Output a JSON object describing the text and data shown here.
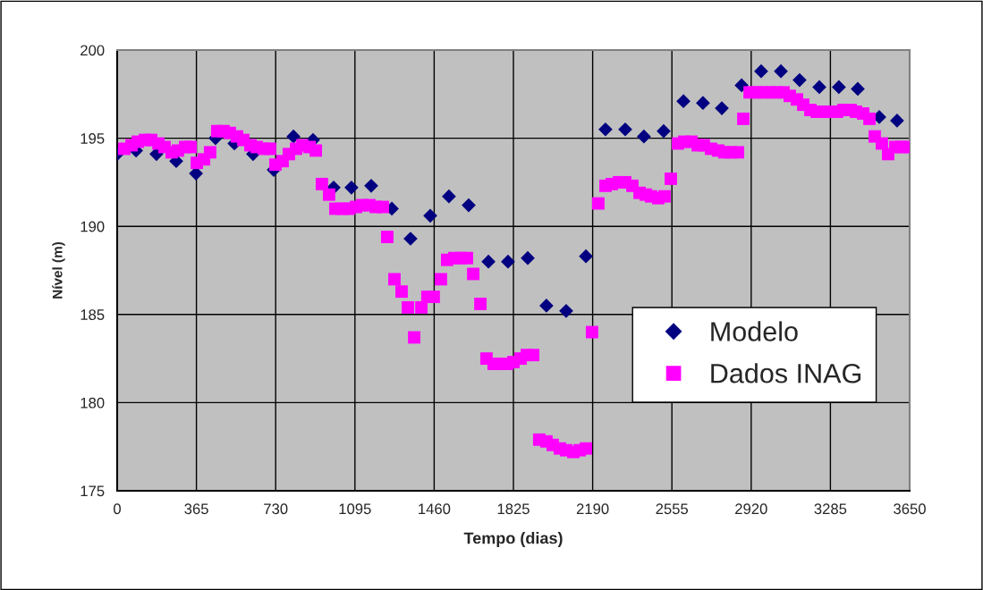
{
  "chart_data": {
    "type": "scatter",
    "xlabel": "Tempo (dias)",
    "ylabel": "Nível (m)",
    "xlim": [
      0,
      3650
    ],
    "xticks": [
      0,
      365,
      730,
      1095,
      1460,
      1825,
      2190,
      2555,
      2920,
      3285,
      3650
    ],
    "ylim": [
      175,
      200
    ],
    "yticks": [
      175,
      180,
      185,
      190,
      195,
      200
    ],
    "grid": true,
    "legend": "lower right",
    "series": [
      {
        "name": "Modelo",
        "color": "#000080",
        "marker": "diamond",
        "x": [
          0,
          87,
          181,
          272,
          363,
          453,
          540,
          626,
          721,
          812,
          902,
          997,
          1079,
          1170,
          1265,
          1351,
          1442,
          1528,
          1619,
          1710,
          1800,
          1891,
          1977,
          2068,
          2159,
          2249,
          2340,
          2426,
          2517,
          2608,
          2698,
          2785,
          2876,
          2966,
          3057,
          3143,
          3234,
          3324,
          3411,
          3510,
          3592
        ],
        "values": [
          194.1,
          194.3,
          194.1,
          193.7,
          193.0,
          195.0,
          194.7,
          194.1,
          193.2,
          195.1,
          194.9,
          192.2,
          192.2,
          192.3,
          191.0,
          189.3,
          190.6,
          191.7,
          191.2,
          188.0,
          188.0,
          188.2,
          185.5,
          185.2,
          188.3,
          195.5,
          195.5,
          195.1,
          195.4,
          197.1,
          197.0,
          196.7,
          198.0,
          198.8,
          198.8,
          198.3,
          197.9,
          197.9,
          197.8,
          196.2,
          196.0
        ]
      },
      {
        "name": "Dados INAG",
        "color": "#ff00ff",
        "marker": "square",
        "x": [
          33,
          66,
          95,
          128,
          157,
          190,
          218,
          251,
          280,
          313,
          338,
          367,
          400,
          428,
          461,
          490,
          519,
          552,
          581,
          614,
          643,
          676,
          704,
          729,
          762,
          791,
          824,
          853,
          886,
          915,
          943,
          976,
          1005,
          1038,
          1067,
          1100,
          1129,
          1162,
          1191,
          1224,
          1244,
          1277,
          1310,
          1339,
          1368,
          1401,
          1429,
          1458,
          1491,
          1520,
          1553,
          1582,
          1611,
          1640,
          1673,
          1701,
          1734,
          1763,
          1796,
          1825,
          1858,
          1887,
          1916,
          1944,
          1977,
          2006,
          2039,
          2068,
          2101,
          2130,
          2159,
          2187,
          2216,
          2249,
          2278,
          2311,
          2340,
          2373,
          2406,
          2435,
          2459,
          2492,
          2521,
          2550,
          2583,
          2612,
          2645,
          2674,
          2702,
          2735,
          2768,
          2797,
          2826,
          2859,
          2884,
          2913,
          2945,
          2974,
          3007,
          3036,
          3069,
          3098,
          3131,
          3160,
          3193,
          3222,
          3254,
          3283,
          3316,
          3345,
          3378,
          3403,
          3436,
          3465,
          3489,
          3522,
          3551,
          3584,
          3613,
          3646
        ],
        "values": [
          194.4,
          194.6,
          194.8,
          194.9,
          194.9,
          194.7,
          194.5,
          194.2,
          194.3,
          194.5,
          194.5,
          193.6,
          193.8,
          194.2,
          195.4,
          195.4,
          195.3,
          195.1,
          194.9,
          194.6,
          194.5,
          194.4,
          194.4,
          193.5,
          193.7,
          194.1,
          194.4,
          194.6,
          194.5,
          194.3,
          192.4,
          191.8,
          191.0,
          191.0,
          191.0,
          191.1,
          191.2,
          191.2,
          191.1,
          191.1,
          189.4,
          187.0,
          186.3,
          185.4,
          183.7,
          185.4,
          186.0,
          186.0,
          187.0,
          188.1,
          188.2,
          188.2,
          188.2,
          187.3,
          185.6,
          182.5,
          182.2,
          182.2,
          182.2,
          182.3,
          182.5,
          182.7,
          182.7,
          177.9,
          177.8,
          177.6,
          177.4,
          177.3,
          177.2,
          177.3,
          177.4,
          184.0,
          191.3,
          192.3,
          192.4,
          192.5,
          192.5,
          192.3,
          191.9,
          191.8,
          191.7,
          191.6,
          191.7,
          192.7,
          194.7,
          194.8,
          194.8,
          194.6,
          194.6,
          194.4,
          194.3,
          194.2,
          194.2,
          194.2,
          196.1,
          197.6,
          197.6,
          197.6,
          197.6,
          197.6,
          197.6,
          197.4,
          197.2,
          196.9,
          196.6,
          196.5,
          196.5,
          196.5,
          196.5,
          196.6,
          196.6,
          196.5,
          196.4,
          196.1,
          195.1,
          194.7,
          194.1,
          194.5,
          194.5,
          194.5
        ]
      }
    ]
  }
}
